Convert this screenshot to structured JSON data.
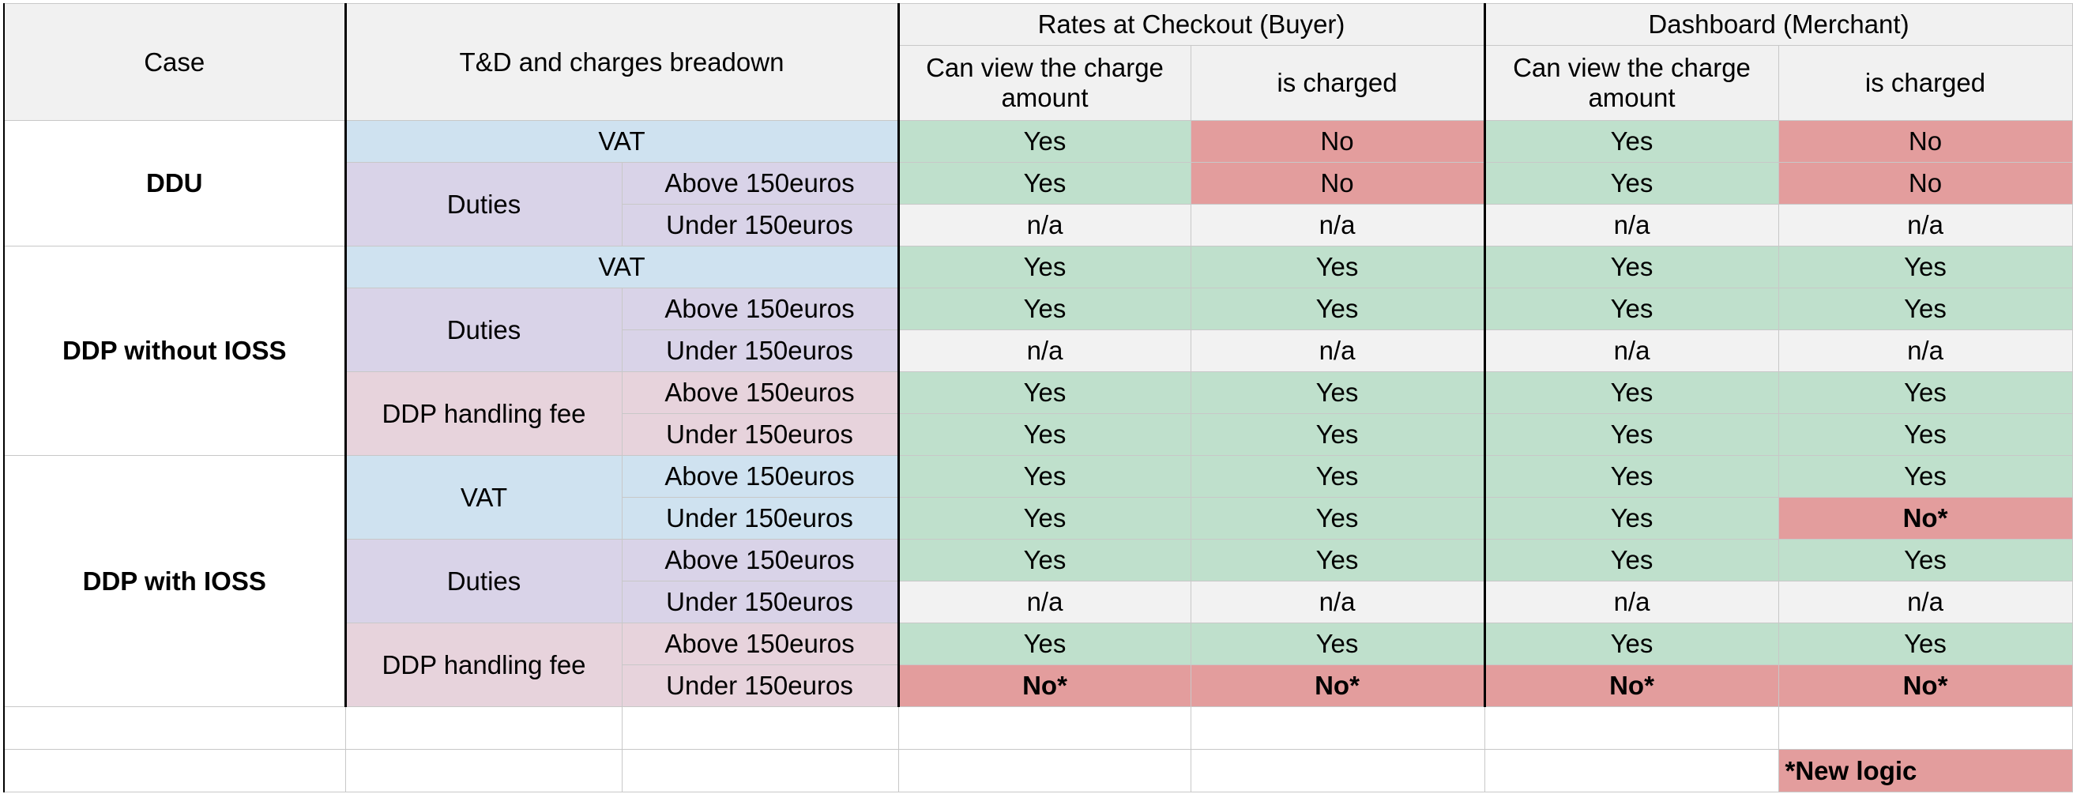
{
  "header": {
    "case": "Case",
    "breakdown": "T&D and charges breadown",
    "group_buyer": "Rates at Checkout (Buyer)",
    "group_merchant": "Dashboard (Merchant)",
    "col_view": "Can view the charge amount",
    "col_charged": "is charged"
  },
  "cases": {
    "ddu": {
      "name": "DDU",
      "vat": {
        "label": "VAT",
        "values": [
          "Yes",
          "No",
          "Yes",
          "No"
        ]
      },
      "duties": {
        "label": "Duties",
        "above": {
          "label": "Above 150euros",
          "values": [
            "Yes",
            "No",
            "Yes",
            "No"
          ]
        },
        "under": {
          "label": "Under 150euros",
          "values": [
            "n/a",
            "n/a",
            "n/a",
            "n/a"
          ]
        }
      }
    },
    "ddp_without": {
      "name": "DDP without IOSS",
      "vat": {
        "label": "VAT",
        "values": [
          "Yes",
          "Yes",
          "Yes",
          "Yes"
        ]
      },
      "duties": {
        "label": "Duties",
        "above": {
          "label": "Above 150euros",
          "values": [
            "Yes",
            "Yes",
            "Yes",
            "Yes"
          ]
        },
        "under": {
          "label": "Under 150euros",
          "values": [
            "n/a",
            "n/a",
            "n/a",
            "n/a"
          ]
        }
      },
      "fee": {
        "label": "DDP handling fee",
        "above": {
          "label": "Above 150euros",
          "values": [
            "Yes",
            "Yes",
            "Yes",
            "Yes"
          ]
        },
        "under": {
          "label": "Under 150euros",
          "values": [
            "Yes",
            "Yes",
            "Yes",
            "Yes"
          ]
        }
      }
    },
    "ddp_with": {
      "name": "DDP with IOSS",
      "vat": {
        "label": "VAT",
        "above": {
          "label": "Above 150euros",
          "values": [
            "Yes",
            "Yes",
            "Yes",
            "Yes"
          ]
        },
        "under": {
          "label": "Under 150euros",
          "values": [
            "Yes",
            "Yes",
            "Yes",
            "No*"
          ]
        }
      },
      "duties": {
        "label": "Duties",
        "above": {
          "label": "Above 150euros",
          "values": [
            "Yes",
            "Yes",
            "Yes",
            "Yes"
          ]
        },
        "under": {
          "label": "Under 150euros",
          "values": [
            "n/a",
            "n/a",
            "n/a",
            "n/a"
          ]
        }
      },
      "fee": {
        "label": "DDP handling fee",
        "above": {
          "label": "Above 150euros",
          "values": [
            "Yes",
            "Yes",
            "Yes",
            "Yes"
          ]
        },
        "under": {
          "label": "Under 150euros",
          "values": [
            "No*",
            "No*",
            "No*",
            "No*"
          ]
        }
      }
    }
  },
  "footnote": "*New logic",
  "colors": {
    "yes": "#bfe0cc",
    "no": "#e39d9d",
    "na": "#f2f2f2",
    "vat": "#cfe2f0",
    "duties": "#d9d3e8",
    "fee": "#e7d3dc",
    "header": "#f1f1f1"
  }
}
